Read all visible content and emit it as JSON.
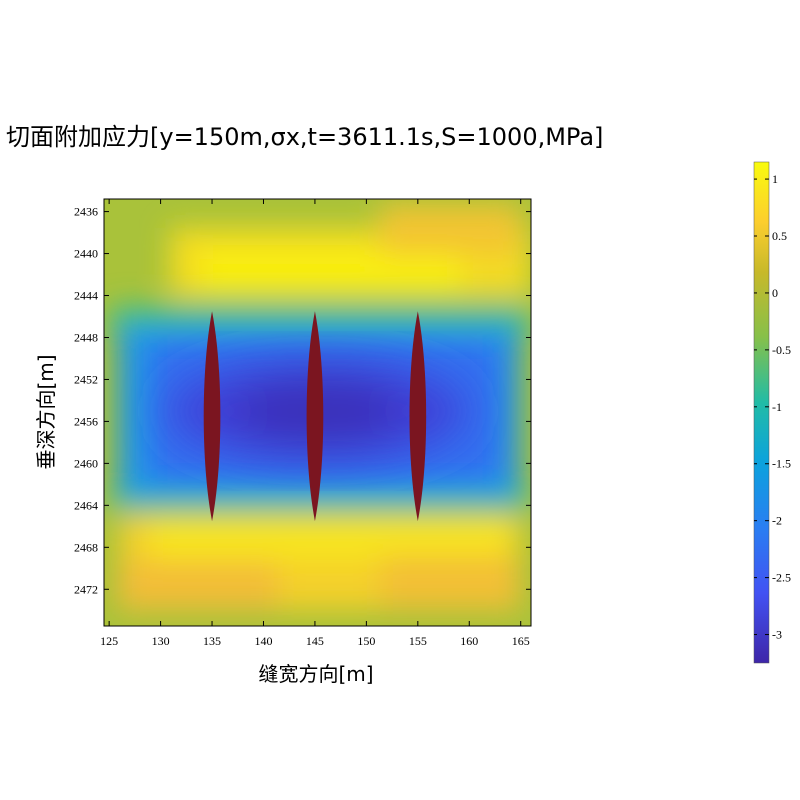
{
  "chart_data": {
    "type": "heatmap",
    "title": "切面附加应力[y=150m,σx,t=3611.1s,S=1000,MPa]",
    "xlabel": "缝宽方向[m]",
    "ylabel": "垂深方向[m]",
    "xlim": [
      124.5,
      166
    ],
    "ylim": [
      2475.5,
      2434.8
    ],
    "y_inverted": true,
    "x_ticks": [
      125,
      130,
      135,
      140,
      145,
      150,
      155,
      160,
      165
    ],
    "x_tick_labels": [
      "125",
      "130",
      "135",
      "140",
      "145",
      "150",
      "155",
      "160",
      "165"
    ],
    "y_ticks": [
      2436,
      2440,
      2444,
      2448,
      2452,
      2456,
      2460,
      2464,
      2468,
      2472
    ],
    "y_tick_labels": [
      "2436",
      "2440",
      "2444",
      "2448",
      "2452",
      "2456",
      "2460",
      "2464",
      "2468",
      "2472"
    ],
    "colormap": "parula",
    "colorbar": {
      "min": -3.25,
      "max": 1.15,
      "ticks": [
        1,
        0.5,
        0,
        -0.5,
        -1,
        -1.5,
        -2,
        -2.5,
        -3
      ],
      "tick_labels": [
        "1",
        "0.5",
        "0",
        "-0.5",
        "-1",
        "-1.5",
        "-2",
        "-2.5",
        "-3"
      ]
    },
    "field_estimate": {
      "background": 0.0,
      "high_bands": [
        {
          "y_center": 2442,
          "value": 0.7
        },
        {
          "y_center": 2468.5,
          "value": 0.7
        }
      ],
      "low_zone": {
        "x_center": 145,
        "y_center": 2455.5,
        "value": -3.0
      }
    },
    "fractures": [
      {
        "x": 135,
        "y_top": 2445.5,
        "y_bottom": 2465.5,
        "half_width": 0.8,
        "color": "#7b1520"
      },
      {
        "x": 145,
        "y_top": 2445.5,
        "y_bottom": 2465.5,
        "half_width": 0.8,
        "color": "#7b1520"
      },
      {
        "x": 155,
        "y_top": 2445.5,
        "y_bottom": 2465.5,
        "half_width": 0.8,
        "color": "#7b1520"
      }
    ]
  }
}
